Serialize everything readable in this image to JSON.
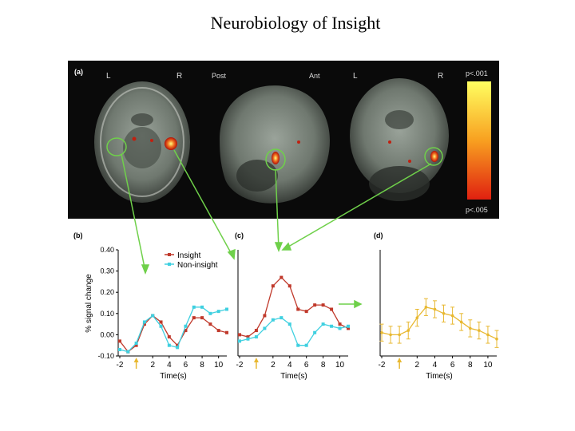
{
  "slide": {
    "title": "Neurobiology of Insight"
  },
  "colors": {
    "insight": "#c0392b",
    "non_insight": "#3fd0e0",
    "panel_d": "#e8b830",
    "arrow": "#6fd04a",
    "scale_top": "#ffff60",
    "scale_bottom": "#e02010"
  },
  "brain_panel": {
    "label": "(a)",
    "texts": {
      "axial_L": "L",
      "axial_R": "R",
      "sag_post": "Post",
      "sag_ant": "Ant",
      "cor_L": "L",
      "cor_R": "R"
    },
    "scale_top": "p<.001",
    "scale_bottom": "p<.005"
  },
  "chart_data": [
    {
      "type": "line",
      "panel_label": "(b)",
      "xlabel": "Time(s)",
      "ylabel": "% signal change",
      "ylim": [
        -0.1,
        0.4
      ],
      "yticks": [
        "-0.10",
        "0.00",
        "0.10",
        "0.20",
        "0.30",
        "0.40"
      ],
      "xticks": [
        "-2",
        "2",
        "4",
        "6",
        "8",
        "10"
      ],
      "xlim": [
        -2,
        11
      ],
      "x": [
        -2,
        -1,
        0,
        1,
        2,
        3,
        4,
        5,
        6,
        7,
        8,
        9,
        10,
        11
      ],
      "legend_position": "top",
      "series": [
        {
          "name": "Insight",
          "color_key": "insight",
          "values": [
            -0.03,
            -0.08,
            -0.05,
            0.05,
            0.09,
            0.06,
            -0.01,
            -0.05,
            0.02,
            0.08,
            0.08,
            0.05,
            0.02,
            0.01
          ]
        },
        {
          "name": "Non-insight",
          "color_key": "non_insight",
          "values": [
            -0.07,
            -0.08,
            -0.04,
            0.06,
            0.09,
            0.04,
            -0.05,
            -0.06,
            0.04,
            0.13,
            0.13,
            0.1,
            0.11,
            0.12
          ]
        }
      ]
    },
    {
      "type": "line",
      "panel_label": "(c)",
      "xlabel": "Time(s)",
      "ylim": [
        -0.1,
        0.4
      ],
      "xticks": [
        "-2",
        "2",
        "4",
        "6",
        "8",
        "10"
      ],
      "xlim": [
        -2,
        11
      ],
      "x": [
        -2,
        -1,
        0,
        1,
        2,
        3,
        4,
        5,
        6,
        7,
        8,
        9,
        10,
        11
      ],
      "series": [
        {
          "name": "",
          "color_key": "insight",
          "values": [
            0.0,
            -0.01,
            0.02,
            0.09,
            0.23,
            0.27,
            0.23,
            0.12,
            0.11,
            0.14,
            0.14,
            0.12,
            0.05,
            0.03
          ]
        },
        {
          "name": "",
          "color_key": "non_insight",
          "values": [
            -0.03,
            -0.02,
            -0.01,
            0.03,
            0.07,
            0.08,
            0.05,
            -0.05,
            -0.05,
            0.01,
            0.05,
            0.04,
            0.03,
            0.04
          ]
        }
      ]
    },
    {
      "type": "line",
      "panel_label": "(d)",
      "xlabel": "Time(s)",
      "ylim": [
        -0.1,
        0.4
      ],
      "xticks": [
        "-2",
        "2",
        "4",
        "6",
        "8",
        "10"
      ],
      "xlim": [
        -2,
        11
      ],
      "x": [
        -2,
        -1,
        0,
        1,
        2,
        3,
        4,
        5,
        6,
        7,
        8,
        9,
        10,
        11
      ],
      "error_bars": true,
      "series": [
        {
          "name": "",
          "color_key": "panel_d",
          "values": [
            0.01,
            0.0,
            0.0,
            0.02,
            0.08,
            0.13,
            0.12,
            0.1,
            0.09,
            0.06,
            0.03,
            0.02,
            0.0,
            -0.02
          ],
          "error": [
            0.04,
            0.04,
            0.04,
            0.04,
            0.04,
            0.04,
            0.04,
            0.04,
            0.04,
            0.04,
            0.04,
            0.04,
            0.04,
            0.04
          ]
        }
      ]
    }
  ]
}
